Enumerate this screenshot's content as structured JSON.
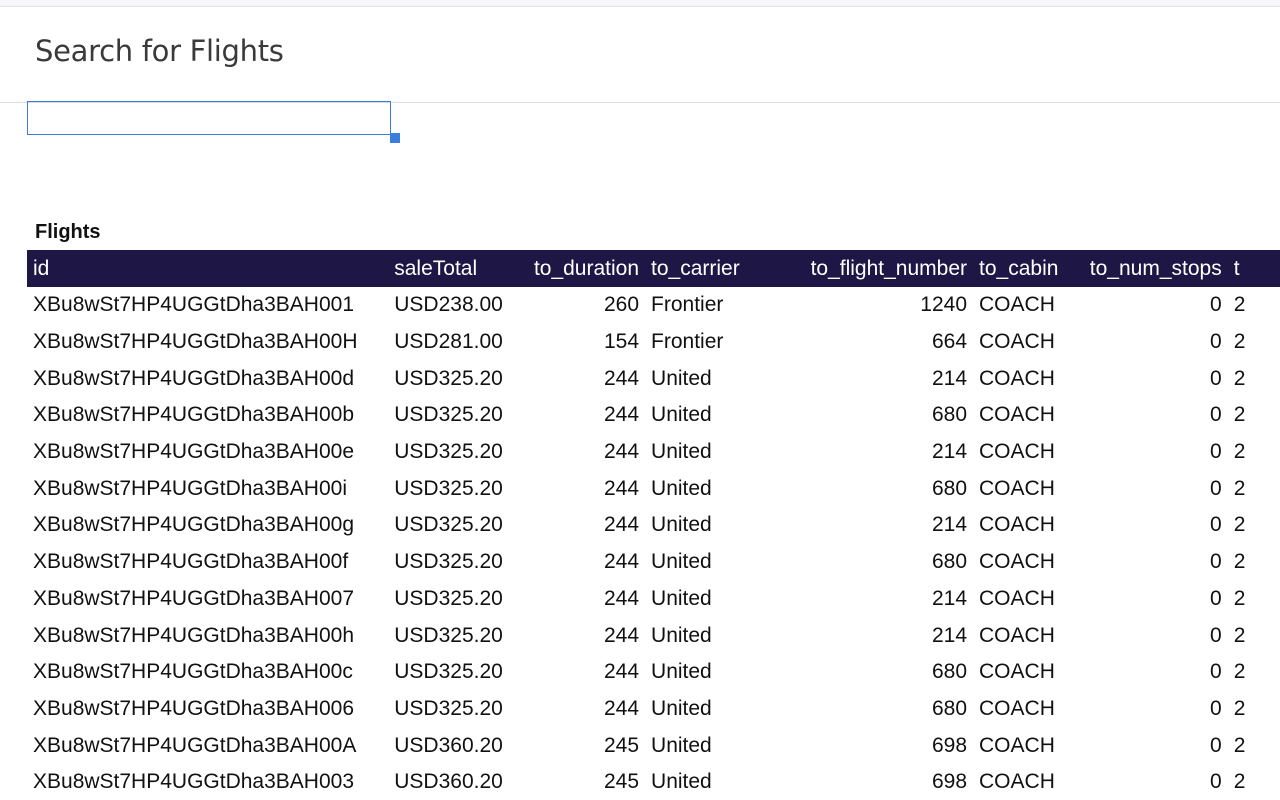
{
  "page": {
    "title": "Search for Flights",
    "search_value": ""
  },
  "table": {
    "title": "Flights",
    "columns": [
      "id",
      "saleTotal",
      "to_duration",
      "to_carrier",
      "to_flight_number",
      "to_cabin",
      "to_num_stops",
      "t"
    ],
    "rows": [
      [
        "XBu8wSt7HP4UGGtDha3BAH001",
        "USD238.00",
        "260",
        "Frontier",
        "1240",
        "COACH",
        "0",
        "2"
      ],
      [
        "XBu8wSt7HP4UGGtDha3BAH00H",
        "USD281.00",
        "154",
        "Frontier",
        "664",
        "COACH",
        "0",
        "2"
      ],
      [
        "XBu8wSt7HP4UGGtDha3BAH00d",
        "USD325.20",
        "244",
        "United",
        "214",
        "COACH",
        "0",
        "2"
      ],
      [
        "XBu8wSt7HP4UGGtDha3BAH00b",
        "USD325.20",
        "244",
        "United",
        "680",
        "COACH",
        "0",
        "2"
      ],
      [
        "XBu8wSt7HP4UGGtDha3BAH00e",
        "USD325.20",
        "244",
        "United",
        "214",
        "COACH",
        "0",
        "2"
      ],
      [
        "XBu8wSt7HP4UGGtDha3BAH00i",
        "USD325.20",
        "244",
        "United",
        "680",
        "COACH",
        "0",
        "2"
      ],
      [
        "XBu8wSt7HP4UGGtDha3BAH00g",
        "USD325.20",
        "244",
        "United",
        "214",
        "COACH",
        "0",
        "2"
      ],
      [
        "XBu8wSt7HP4UGGtDha3BAH00f",
        "USD325.20",
        "244",
        "United",
        "680",
        "COACH",
        "0",
        "2"
      ],
      [
        "XBu8wSt7HP4UGGtDha3BAH007",
        "USD325.20",
        "244",
        "United",
        "214",
        "COACH",
        "0",
        "2"
      ],
      [
        "XBu8wSt7HP4UGGtDha3BAH00h",
        "USD325.20",
        "244",
        "United",
        "214",
        "COACH",
        "0",
        "2"
      ],
      [
        "XBu8wSt7HP4UGGtDha3BAH00c",
        "USD325.20",
        "244",
        "United",
        "680",
        "COACH",
        "0",
        "2"
      ],
      [
        "XBu8wSt7HP4UGGtDha3BAH006",
        "USD325.20",
        "244",
        "United",
        "680",
        "COACH",
        "0",
        "2"
      ],
      [
        "XBu8wSt7HP4UGGtDha3BAH00A",
        "USD360.20",
        "245",
        "United",
        "698",
        "COACH",
        "0",
        "2"
      ],
      [
        "XBu8wSt7HP4UGGtDha3BAH003",
        "USD360.20",
        "245",
        "United",
        "698",
        "COACH",
        "0",
        "2"
      ]
    ]
  },
  "colors": {
    "header_bg": "#1e1746",
    "focus": "#3b7ddd"
  }
}
